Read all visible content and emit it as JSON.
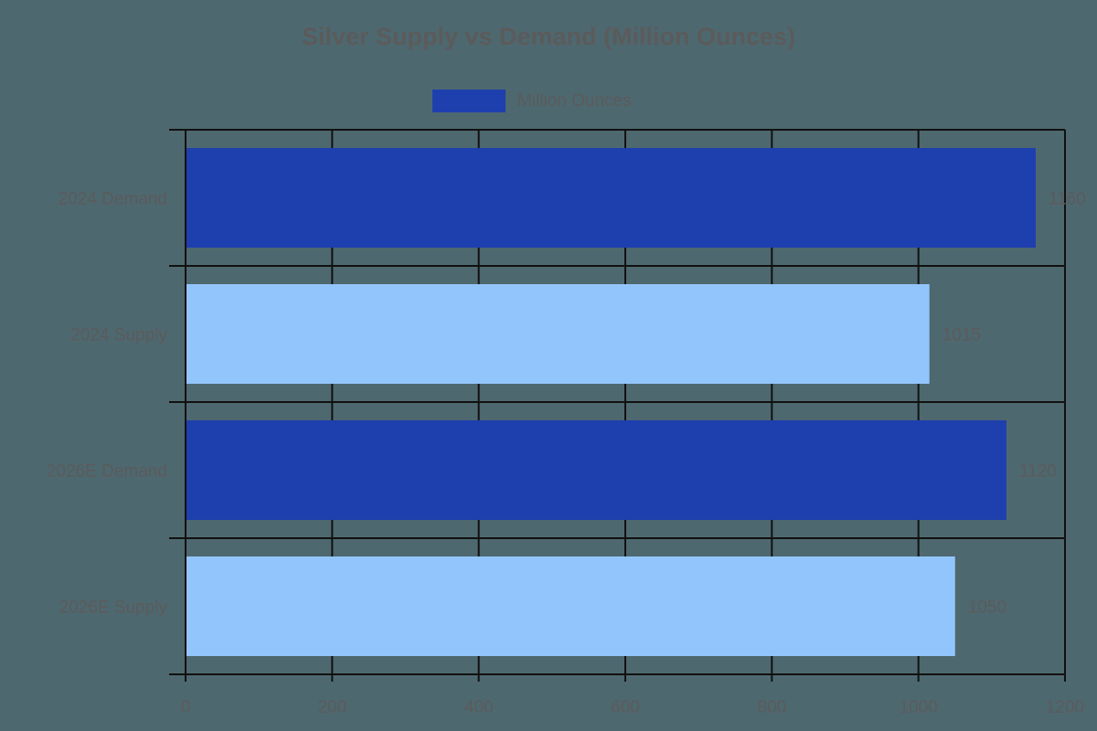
{
  "chart_data": {
    "type": "bar",
    "orientation": "horizontal",
    "title": "Silver Supply vs Demand (Million Ounces)",
    "categories": [
      "2024 Demand",
      "2024 Supply",
      "2026E Demand",
      "2026E Supply"
    ],
    "series": [
      {
        "name": "Million Ounces",
        "values": [
          1160,
          1015,
          1120,
          1050
        ]
      }
    ],
    "bar_colors": [
      "#1e3fae",
      "#93c5fd",
      "#1e3fae",
      "#93c5fd"
    ],
    "value_labels": [
      "1160",
      "1015",
      "1120",
      "1050"
    ],
    "xlabel": "",
    "ylabel": "",
    "xlim": [
      0,
      1200
    ],
    "x_ticks": [
      0,
      200,
      400,
      600,
      800,
      1000,
      1200
    ],
    "x_tick_labels": [
      "0",
      "200",
      "400",
      "600",
      "800",
      "1000",
      "1200"
    ],
    "grid": true,
    "legend": {
      "position": "top",
      "entries": [
        {
          "label": "Million Ounces",
          "color": "#1e3fae"
        }
      ]
    }
  },
  "colors": {
    "background": "#4e6870",
    "text": "#5b5b5b",
    "grid": "#111111",
    "demand": "#1e3fae",
    "supply": "#93c5fd"
  }
}
